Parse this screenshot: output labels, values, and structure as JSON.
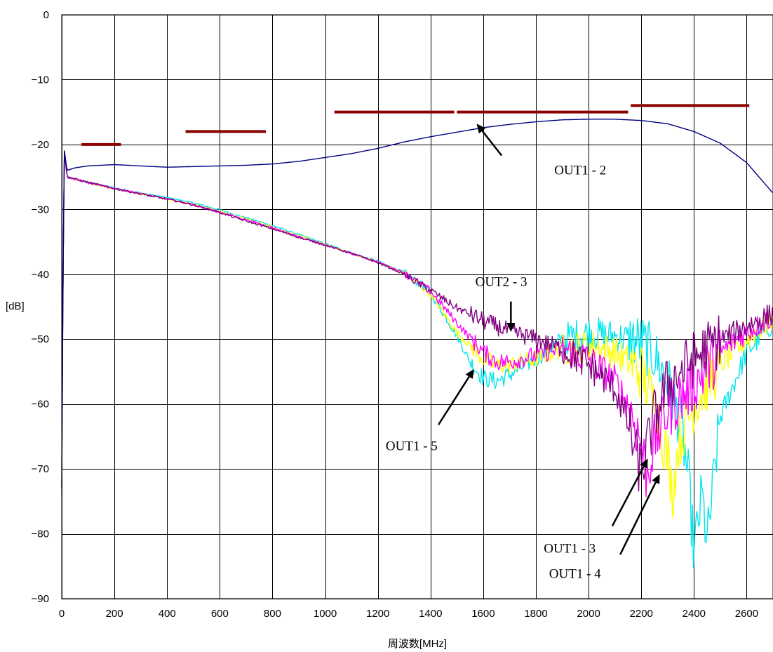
{
  "chart_data": {
    "type": "line",
    "xlabel": "周波数[MHz]",
    "ylabel": "[dB]",
    "xlim": [
      0,
      2700
    ],
    "ylim": [
      -90,
      0
    ],
    "xticks": [
      0,
      200,
      400,
      600,
      800,
      1000,
      1200,
      1400,
      1600,
      1800,
      2000,
      2200,
      2400,
      2600
    ],
    "yticks": [
      0,
      -10,
      -20,
      -30,
      -40,
      -50,
      -60,
      -70,
      -80,
      -90
    ],
    "grid": true,
    "series": [
      {
        "name": "OUT1 - 2",
        "color": "#000080",
        "x": [
          0,
          5,
          10,
          20,
          50,
          100,
          200,
          300,
          400,
          500,
          600,
          700,
          800,
          900,
          1000,
          1100,
          1200,
          1300,
          1400,
          1500,
          1600,
          1700,
          1800,
          1900,
          2000,
          2100,
          2200,
          2300,
          2400,
          2500,
          2600,
          2700
        ],
        "y": [
          -70,
          -40,
          -21,
          -24,
          -23.6,
          -23.3,
          -23.1,
          -23.3,
          -23.5,
          -23.4,
          -23.3,
          -23.2,
          -23,
          -22.6,
          -22,
          -21.4,
          -20.6,
          -19.6,
          -18.8,
          -18.1,
          -17.4,
          -16.9,
          -16.5,
          -16.2,
          -16.1,
          -16.1,
          -16.3,
          -16.8,
          -18,
          -19.8,
          -22.8,
          -27.5
        ]
      },
      {
        "name": "OUT2 - 3",
        "color": "#800080",
        "x": [
          0,
          5,
          10,
          20,
          100,
          200,
          300,
          400,
          500,
          600,
          700,
          800,
          900,
          1000,
          1100,
          1200,
          1300,
          1400,
          1500,
          1600,
          1700,
          1800,
          1900,
          2000,
          2100,
          2150,
          2180,
          2200,
          2250,
          2300,
          2400,
          2500,
          2600,
          2700
        ],
        "y": [
          -73,
          -40,
          -21,
          -25,
          -25.8,
          -26.8,
          -27.6,
          -28.4,
          -29.3,
          -30.5,
          -31.8,
          -33,
          -34.3,
          -35.5,
          -36.8,
          -38.2,
          -40,
          -42.5,
          -45.2,
          -47.2,
          -48.8,
          -50,
          -51.5,
          -54,
          -57.5,
          -63,
          -68,
          -70.5,
          -62,
          -57,
          -53,
          -50,
          -48,
          -46
        ]
      },
      {
        "name": "OUT1 - 3",
        "color": "#ff00ff",
        "x": [
          0,
          5,
          10,
          20,
          100,
          200,
          300,
          400,
          500,
          600,
          700,
          800,
          900,
          1000,
          1100,
          1200,
          1300,
          1400,
          1500,
          1600,
          1650,
          1700,
          1800,
          1900,
          2000,
          2100,
          2150,
          2200,
          2220,
          2250,
          2300,
          2400,
          2500,
          2600,
          2700
        ],
        "y": [
          -73,
          -40,
          -21,
          -25,
          -25.9,
          -26.8,
          -27.6,
          -28.4,
          -29.3,
          -30.4,
          -31.6,
          -32.8,
          -34.2,
          -35.5,
          -36.8,
          -38.1,
          -39.8,
          -42.6,
          -47.5,
          -52,
          -53.5,
          -53.5,
          -52.5,
          -51.5,
          -53,
          -56.5,
          -60,
          -66,
          -71,
          -66,
          -61,
          -57,
          -52,
          -49,
          -46.5
        ]
      },
      {
        "name": "OUT1 - 4",
        "color": "#ffff00",
        "x": [
          0,
          5,
          10,
          20,
          100,
          200,
          300,
          400,
          500,
          600,
          700,
          800,
          900,
          1000,
          1100,
          1200,
          1300,
          1400,
          1500,
          1600,
          1650,
          1700,
          1800,
          1900,
          2000,
          2100,
          2200,
          2250,
          2300,
          2320,
          2340,
          2400,
          2500,
          2600,
          2700
        ],
        "y": [
          -73,
          -40,
          -21,
          -25,
          -25.9,
          -26.8,
          -27.6,
          -28.4,
          -29.2,
          -30.3,
          -31.5,
          -32.7,
          -34.1,
          -35.4,
          -36.8,
          -38.1,
          -39.8,
          -43,
          -49,
          -53,
          -54,
          -54,
          -53,
          -51.5,
          -51,
          -52,
          -55,
          -60,
          -68,
          -74,
          -66,
          -60,
          -54,
          -50,
          -47
        ]
      },
      {
        "name": "OUT1 - 5",
        "color": "#00e5ee",
        "x": [
          0,
          5,
          10,
          20,
          100,
          200,
          300,
          400,
          500,
          600,
          700,
          800,
          900,
          1000,
          1100,
          1200,
          1300,
          1400,
          1500,
          1550,
          1600,
          1650,
          1700,
          1800,
          1900,
          2000,
          2100,
          2200,
          2250,
          2300,
          2350,
          2380,
          2400,
          2430,
          2450,
          2500,
          2600,
          2700
        ],
        "y": [
          -74,
          -40,
          -21,
          -25,
          -25.9,
          -26.7,
          -27.5,
          -28.2,
          -29,
          -30.1,
          -31.3,
          -32.5,
          -33.9,
          -35.3,
          -36.7,
          -38,
          -39.7,
          -42.8,
          -49.5,
          -53.5,
          -56,
          -56.5,
          -55.5,
          -53,
          -50,
          -49,
          -49.5,
          -50.5,
          -52.5,
          -56.5,
          -63,
          -72,
          -83,
          -74,
          -81.5,
          -62,
          -52,
          -47.5
        ]
      }
    ],
    "limit_segments": [
      {
        "x": [
          75,
          225
        ],
        "y": -20
      },
      {
        "x": [
          470,
          775
        ],
        "y": -18
      },
      {
        "x": [
          1035,
          1490
        ],
        "y": -15
      },
      {
        "x": [
          1500,
          2150
        ],
        "y": -15
      },
      {
        "x": [
          2160,
          2610
        ],
        "y": -14
      }
    ],
    "annotations": [
      {
        "text": "OUT1 - 2",
        "x": 1870,
        "y": -24.6,
        "arrow_from": [
          1670,
          -21.7
        ],
        "arrow_to": [
          1575,
          -16.8
        ]
      },
      {
        "text": "OUT2 - 3",
        "x": 1570,
        "y": -41.8,
        "arrow_from": [
          1705,
          -44.2
        ],
        "arrow_to": [
          1705,
          -48.9
        ]
      },
      {
        "text": "OUT1 - 5",
        "x": 1230,
        "y": -67.1,
        "arrow_from": [
          1430,
          -63.2
        ],
        "arrow_to": [
          1565,
          -54.6
        ]
      },
      {
        "text": "OUT1 - 3",
        "x": 1830,
        "y": -82.9,
        "arrow_from": [
          2090,
          -78.8
        ],
        "arrow_to": [
          2225,
          -68.4
        ]
      },
      {
        "text": "OUT1 - 4",
        "x": 1850,
        "y": -86.8,
        "arrow_from": [
          2120,
          -83.2
        ],
        "arrow_to": [
          2270,
          -70.8
        ]
      }
    ]
  }
}
